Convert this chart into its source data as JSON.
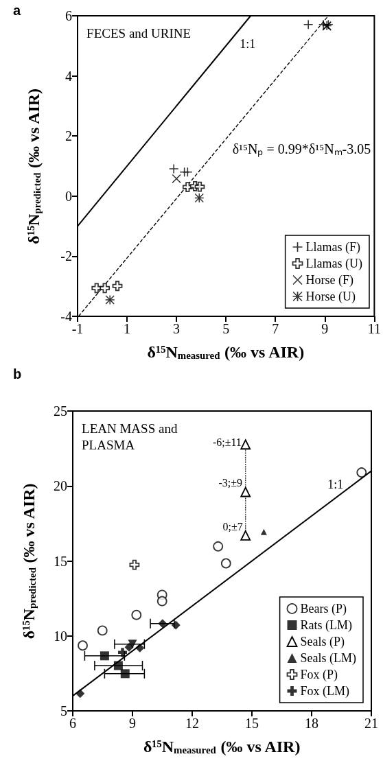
{
  "chart_data": [
    {
      "type": "scatter",
      "title": "a",
      "xlabel": "δ¹⁵N$_{measured}$ (‰ vs AIR)",
      "ylabel": "δ¹⁵N$_{predicted}$ (‰ vs AIR)",
      "xlim": [
        -1,
        11
      ],
      "xticks": [
        -1,
        1,
        3,
        5,
        7,
        9,
        11
      ],
      "ylim": [
        -4,
        6
      ],
      "yticks": [
        -4,
        -2,
        0,
        2,
        4,
        6
      ],
      "legend": "bottom right",
      "annotations": [
        "FECES and URINE",
        "1:1",
        "δ¹⁵Nₚ = 0.99*δ¹⁵Nₘ-3.05"
      ],
      "series": [
        {
          "name": "Llamas (F)",
          "color": "#000000",
          "marker": "plus",
          "x": [
            8.33,
            8.94,
            9.14,
            2.89,
            3.32,
            3.45
          ],
          "values": [
            5.71,
            5.71,
            5.71,
            0.91,
            0.8,
            0.8
          ]
        },
        {
          "name": "Llamas (U)",
          "color": "#000000",
          "marker": "cross-open",
          "x": [
            -0.23,
            0.1,
            0.61,
            3.45,
            3.75,
            3.94
          ],
          "values": [
            -3.06,
            -3.06,
            -2.99,
            0.3,
            0.33,
            0.31
          ]
        },
        {
          "name": "Horse (F)",
          "color": "#000000",
          "marker": "x",
          "x": [
            3.0,
            9.08
          ],
          "values": [
            0.58,
            5.65
          ]
        },
        {
          "name": "Horse (U)",
          "color": "#000000",
          "marker": "star",
          "x": [
            0.31,
            3.92,
            9.08
          ],
          "values": [
            -3.45,
            -0.06,
            5.67
          ]
        },
        {
          "type": "line",
          "color": "#000000",
          "marker": "none",
          "line_style": "solid",
          "x": [
            -1,
            6
          ],
          "values": [
            -1,
            6
          ]
        },
        {
          "type": "line",
          "color": "#000000",
          "marker": "none",
          "line_style": "dashed",
          "x": [
            -0.96,
            9.1
          ],
          "values": [
            -4.0,
            5.96
          ]
        }
      ]
    },
    {
      "type": "scatter",
      "title": "b",
      "xlabel": "δ¹⁵N$_{measured}$ (‰ vs AIR)",
      "ylabel": "δ¹⁵N$_{predicted}$ (‰ vs AIR)",
      "xlim": [
        6,
        21
      ],
      "xticks": [
        6,
        9,
        12,
        15,
        18,
        21
      ],
      "ylim": [
        5,
        25
      ],
      "yticks": [
        5,
        10,
        15,
        20,
        25
      ],
      "legend": "bottom right",
      "annotations": [
        "LEAN MASS and PLASMA",
        "-6;±11",
        "-3;±9",
        "0;±7",
        "1:1"
      ],
      "series": [
        {
          "name": "Bears (P)",
          "color": "#000000",
          "marker": "circle-open",
          "x": [
            6.5,
            7.49,
            9.2,
            10.49,
            10.49,
            13.3,
            13.7,
            20.51
          ],
          "values": [
            9.36,
            10.36,
            11.4,
            12.74,
            12.32,
            15.97,
            14.84,
            20.9
          ]
        },
        {
          "name": "Rats (LM)",
          "color": "#000000",
          "marker": "square",
          "x": [
            7.6,
            8.29,
            8.63
          ],
          "values": [
            8.67,
            8.02,
            7.48
          ],
          "xerrors": [
            [
              6.6,
              8.6
            ],
            [
              7.1,
              9.5
            ],
            [
              7.6,
              9.6
            ]
          ]
        },
        {
          "color": "#000000",
          "marker": "diamond",
          "x": [
            6.37,
            10.51,
            11.18,
            9.37,
            8.83
          ],
          "values": [
            6.16,
            10.82,
            10.72,
            9.2,
            9.24
          ],
          "xerrors": [
            null,
            [
              9.9,
              11.1
            ],
            null,
            null,
            null
          ]
        },
        {
          "color": "#000000",
          "marker": "triangle-down",
          "x": [
            9.0
          ],
          "values": [
            9.45
          ],
          "xerrors": [
            [
              8.1,
              9.6
            ]
          ]
        },
        {
          "name": "Seals (P)",
          "type": "line",
          "line_style": "dotted",
          "color": "#000000",
          "marker": "triangle-open",
          "x": [
            14.68,
            14.68,
            14.68
          ],
          "values": [
            22.77,
            19.6,
            16.7
          ]
        },
        {
          "name": "Seals (LM)",
          "color": "#000000",
          "marker": "triangle",
          "x": [
            15.6
          ],
          "values": [
            16.93
          ]
        },
        {
          "name": "Fox (P)",
          "color": "#000000",
          "marker": "cross-open",
          "x": [
            9.1
          ],
          "values": [
            14.74
          ]
        },
        {
          "name": "Fox (LM)",
          "color": "#000000",
          "marker": "cross",
          "x": [
            8.5
          ],
          "values": [
            8.9
          ]
        },
        {
          "type": "line",
          "color": "#000000",
          "marker": "none",
          "line_style": "solid",
          "x": [
            6,
            21
          ],
          "values": [
            6,
            21
          ]
        }
      ]
    }
  ]
}
